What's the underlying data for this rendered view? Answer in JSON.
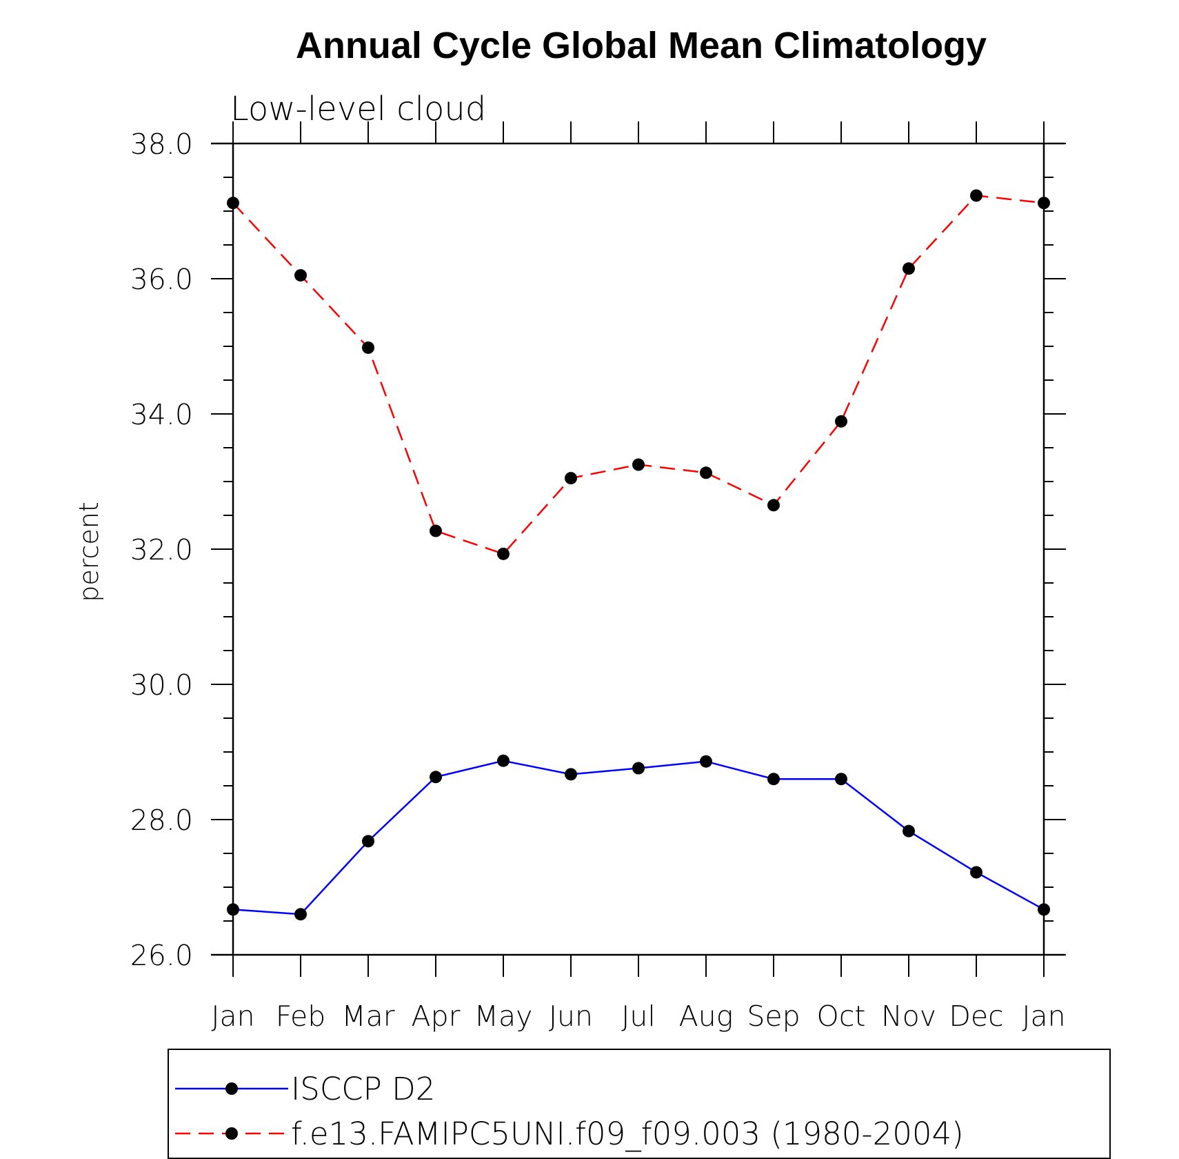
{
  "chart_data": {
    "type": "line",
    "title": "Annual Cycle Global Mean Climatology",
    "subtitle": "Low-level cloud",
    "xlabel": "",
    "ylabel": "percent",
    "ylim": [
      26.0,
      38.0
    ],
    "yticks": [
      "26.0",
      "28.0",
      "30.0",
      "32.0",
      "34.0",
      "36.0",
      "38.0"
    ],
    "yticks_values": [
      26,
      28,
      30,
      32,
      34,
      36,
      38
    ],
    "categories": [
      "Jan",
      "Feb",
      "Mar",
      "Apr",
      "May",
      "Jun",
      "Jul",
      "Aug",
      "Sep",
      "Oct",
      "Nov",
      "Dec",
      "Jan"
    ],
    "series": [
      {
        "name": "ISCCP D2",
        "color": "#0000ff",
        "dash": "solid",
        "marker": "filled-circle",
        "values": [
          26.67,
          26.6,
          27.68,
          28.63,
          28.87,
          28.67,
          28.76,
          28.86,
          28.6,
          28.6,
          27.83,
          27.22,
          26.67
        ]
      },
      {
        "name": "f.e13.FAMIPC5UNI.f09_f09.003 (1980-2004)",
        "color": "#ff0000",
        "dash": "dashed",
        "marker": "filled-circle",
        "values": [
          37.12,
          36.05,
          34.98,
          32.27,
          31.93,
          33.05,
          33.25,
          33.13,
          32.65,
          33.89,
          36.15,
          37.23,
          37.12
        ]
      }
    ],
    "legend_position": "bottom"
  }
}
